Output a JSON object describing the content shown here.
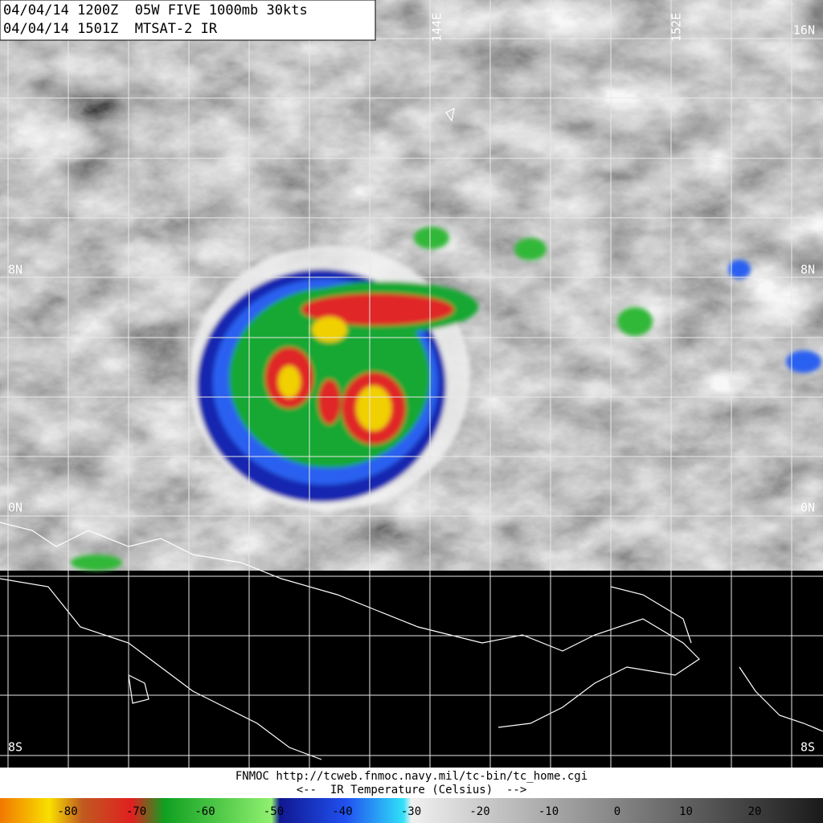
{
  "header": {
    "line1": "04/04/14 1200Z  05W FIVE 1000mb 30kts",
    "line2": "04/04/14 1501Z  MTSAT-2 IR"
  },
  "map": {
    "lon_labels": [
      "144E",
      "152E"
    ],
    "lat_labels_left": [
      "8N",
      "0N",
      "8S"
    ],
    "lat_labels_right": [
      "16N",
      "8N",
      "0N",
      "8S"
    ]
  },
  "footer": {
    "source": "FNMOC http://tcweb.fnmoc.navy.mil/tc-bin/tc_home.cgi",
    "legend_title": "<--  IR Temperature (Celsius)  -->"
  },
  "colorbar": {
    "ticks": [
      -80,
      -70,
      -60,
      -50,
      -40,
      -30,
      -20,
      -10,
      0,
      10,
      20
    ]
  }
}
